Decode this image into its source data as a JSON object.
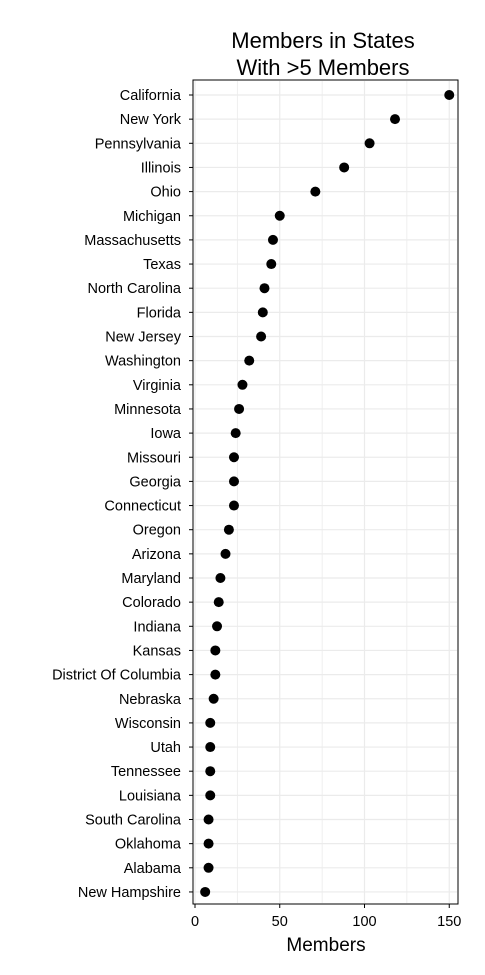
{
  "chart_data": {
    "type": "scatter",
    "title": "Members in States\nWith >5 Members",
    "title_lines": [
      "Members in States",
      "With >5 Members"
    ],
    "xlabel": "Members",
    "ylabel": "",
    "xlim": [
      0,
      155
    ],
    "xticks": [
      0,
      50,
      100,
      150
    ],
    "grid": true,
    "legend": "none",
    "point_color": "#000000",
    "grid_color": "#ebebeb",
    "categories": [
      "California",
      "New York",
      "Pennsylvania",
      "Illinois",
      "Ohio",
      "Michigan",
      "Massachusetts",
      "Texas",
      "North Carolina",
      "Florida",
      "New Jersey",
      "Washington",
      "Virginia",
      "Minnesota",
      "Iowa",
      "Missouri",
      "Georgia",
      "Connecticut",
      "Oregon",
      "Arizona",
      "Maryland",
      "Colorado",
      "Indiana",
      "Kansas",
      "District Of Columbia",
      "Nebraska",
      "Wisconsin",
      "Utah",
      "Tennessee",
      "Louisiana",
      "South Carolina",
      "Oklahoma",
      "Alabama",
      "New Hampshire"
    ],
    "values": [
      150,
      118,
      103,
      88,
      71,
      50,
      46,
      45,
      41,
      40,
      39,
      32,
      28,
      26,
      24,
      23,
      23,
      23,
      20,
      18,
      15,
      14,
      13,
      12,
      12,
      11,
      9,
      9,
      9,
      9,
      8,
      8,
      8,
      6
    ]
  }
}
